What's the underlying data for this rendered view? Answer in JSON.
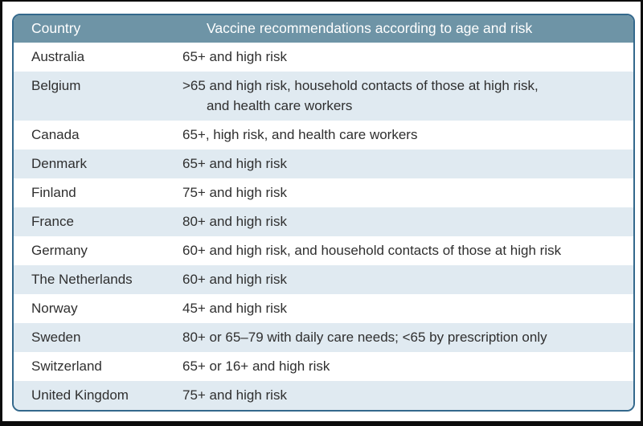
{
  "theme": {
    "header_bg": "#6e94a6",
    "header_text": "#ffffff",
    "row_bg": "#ffffff",
    "row_alt_bg": "#e0eaf1",
    "table_border": "#33688c",
    "page_frame": "#0c0c0c",
    "body_text": "#2f2f2f"
  },
  "table": {
    "columns": [
      "Country",
      "Vaccine recommendations according to age and risk"
    ],
    "rows": [
      {
        "country": "Australia",
        "recommendation": "65+ and high risk"
      },
      {
        "country": "Belgium",
        "recommendation": ">65 and high risk, household contacts of those at high risk,\nand health care workers"
      },
      {
        "country": "Canada",
        "recommendation": "65+, high risk, and health care workers"
      },
      {
        "country": "Denmark",
        "recommendation": "65+ and high risk"
      },
      {
        "country": "Finland",
        "recommendation": "75+ and high risk"
      },
      {
        "country": "France",
        "recommendation": "80+ and high risk"
      },
      {
        "country": "Germany",
        "recommendation": "60+ and high risk, and household contacts of those at high risk"
      },
      {
        "country": "The Netherlands",
        "recommendation": "60+ and high risk"
      },
      {
        "country": "Norway",
        "recommendation": "45+ and high risk"
      },
      {
        "country": "Sweden",
        "recommendation": "80+ or 65–79 with daily care needs; <65 by prescription only"
      },
      {
        "country": "Switzerland",
        "recommendation": "65+ or 16+ and high risk"
      },
      {
        "country": "United Kingdom",
        "recommendation": "75+ and high risk"
      }
    ]
  }
}
